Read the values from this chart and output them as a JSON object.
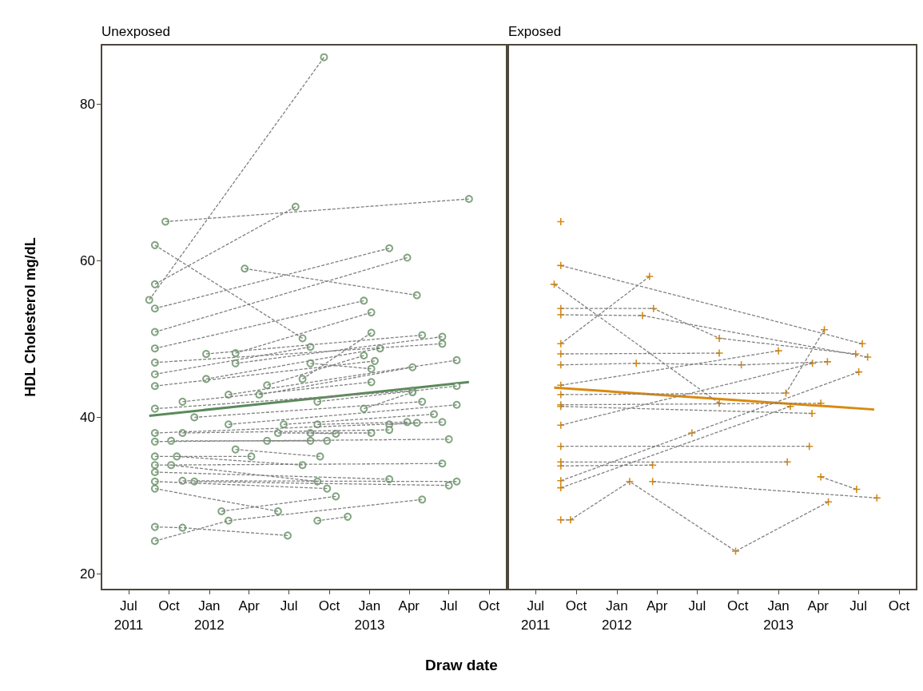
{
  "chart_data": [
    {
      "type": "line",
      "title": "Unexposed",
      "xlabel": "Draw date",
      "ylabel": "HDL Cholesterol mg/dL",
      "line_style": "dashed",
      "marker": "none",
      "xlim": [
        "2011-04-30",
        "2013-11-10"
      ],
      "ylim": [
        18,
        87.6
      ],
      "yticks": [
        20,
        40,
        60,
        80
      ],
      "xticks": [
        {
          "value": "2011-07-01",
          "label": "Jul\n2011"
        },
        {
          "value": "2011-10-01",
          "label": "Oct"
        },
        {
          "value": "2012-01-01",
          "label": "Jan\n2012"
        },
        {
          "value": "2012-04-01",
          "label": "Apr"
        },
        {
          "value": "2012-07-01",
          "label": "Jul"
        },
        {
          "value": "2012-10-01",
          "label": "Oct"
        },
        {
          "value": "2013-01-01",
          "label": "Jan\n2013"
        },
        {
          "value": "2013-04-01",
          "label": "Apr"
        },
        {
          "value": "2013-07-01",
          "label": "Jul"
        },
        {
          "value": "2013-10-01",
          "label": "Oct"
        }
      ],
      "series": [
        {
          "color": "#808080",
          "x": [
            "2011-08-17",
            "2012-09-19"
          ],
          "values": [
            55,
            86
          ]
        },
        {
          "color": "#808080",
          "x": [
            "2011-09-23",
            "2013-08-16"
          ],
          "values": [
            65,
            67.9
          ]
        },
        {
          "color": "#808080",
          "x": [
            "2011-08-30",
            "2012-07-16"
          ],
          "values": [
            57,
            66.9
          ]
        },
        {
          "color": "#808080",
          "x": [
            "2011-08-30",
            "2012-08-01"
          ],
          "values": [
            62,
            50.1
          ]
        },
        {
          "color": "#808080",
          "x": [
            "2011-08-30",
            "2013-02-15"
          ],
          "values": [
            53.9,
            61.6
          ]
        },
        {
          "color": "#808080",
          "x": [
            "2011-08-30",
            "2013-03-28"
          ],
          "values": [
            50.9,
            60.4
          ]
        },
        {
          "color": "#808080",
          "x": [
            "2012-03-22",
            "2013-04-19"
          ],
          "values": [
            59,
            55.6
          ]
        },
        {
          "color": "#808080",
          "x": [
            "2011-08-30",
            "2012-12-19"
          ],
          "values": [
            48.8,
            54.9
          ]
        },
        {
          "color": "#808080",
          "x": [
            "2011-12-25",
            "2013-05-01"
          ],
          "values": [
            48.1,
            50.5
          ]
        },
        {
          "color": "#808080",
          "x": [
            "2012-03-01",
            "2013-01-05"
          ],
          "values": [
            48.2,
            53.4
          ]
        },
        {
          "color": "#808080",
          "x": [
            "2012-03-01",
            "2013-06-16"
          ],
          "values": [
            46.9,
            50.3
          ]
        },
        {
          "color": "#808080",
          "x": [
            "2011-08-30",
            "2013-06-16"
          ],
          "values": [
            47,
            49.4
          ]
        },
        {
          "color": "#808080",
          "x": [
            "2011-08-30",
            "2012-08-19"
          ],
          "values": [
            45.5,
            49
          ]
        },
        {
          "color": "#808080",
          "x": [
            "2011-12-25",
            "2013-01-25"
          ],
          "values": [
            44.9,
            48.8
          ]
        },
        {
          "color": "#808080",
          "x": [
            "2012-08-01",
            "2013-01-05"
          ],
          "values": [
            44.9,
            50.8
          ]
        },
        {
          "color": "#808080",
          "x": [
            "2012-05-12",
            "2012-12-19"
          ],
          "values": [
            44.1,
            47.9
          ]
        },
        {
          "color": "#808080",
          "x": [
            "2011-08-30",
            "2013-01-13"
          ],
          "values": [
            44,
            47.2
          ]
        },
        {
          "color": "#808080",
          "x": [
            "2012-02-14",
            "2013-07-19"
          ],
          "values": [
            42.9,
            47.3
          ]
        },
        {
          "color": "#808080",
          "x": [
            "2012-04-24",
            "2013-04-09"
          ],
          "values": [
            42.9,
            46.4
          ]
        },
        {
          "color": "#808080",
          "x": [
            "2012-08-19",
            "2013-01-05"
          ],
          "values": [
            46.9,
            46.2
          ]
        },
        {
          "color": "#808080",
          "x": [
            "2011-11-01",
            "2013-01-05"
          ],
          "values": [
            42,
            44.5
          ]
        },
        {
          "color": "#808080",
          "x": [
            "2012-09-04",
            "2013-07-19"
          ],
          "values": [
            42,
            44
          ]
        },
        {
          "color": "#808080",
          "x": [
            "2011-08-30",
            "2013-04-09"
          ],
          "values": [
            41.1,
            43.4
          ]
        },
        {
          "color": "#808080",
          "x": [
            "2012-12-19",
            "2013-04-09"
          ],
          "values": [
            41.1,
            43.2
          ]
        },
        {
          "color": "#808080",
          "x": [
            "2011-11-28",
            "2013-05-01"
          ],
          "values": [
            40,
            42
          ]
        },
        {
          "color": "#808080",
          "x": [
            "2012-02-14",
            "2013-07-19"
          ],
          "values": [
            39.1,
            41.6
          ]
        },
        {
          "color": "#808080",
          "x": [
            "2012-06-19",
            "2013-05-28"
          ],
          "values": [
            39.1,
            40.4
          ]
        },
        {
          "color": "#808080",
          "x": [
            "2012-09-04",
            "2013-03-28"
          ],
          "values": [
            39.1,
            39.4
          ]
        },
        {
          "color": "#808080",
          "x": [
            "2013-02-15",
            "2013-04-19"
          ],
          "values": [
            39.1,
            39.3
          ]
        },
        {
          "color": "#808080",
          "x": [
            "2011-08-30",
            "2013-06-16"
          ],
          "values": [
            38,
            39.4
          ]
        },
        {
          "color": "#808080",
          "x": [
            "2011-11-01",
            "2013-02-15"
          ],
          "values": [
            38,
            38.4
          ]
        },
        {
          "color": "#808080",
          "x": [
            "2012-06-06",
            "2013-01-05"
          ],
          "values": [
            38,
            38
          ]
        },
        {
          "color": "#808080",
          "x": [
            "2012-08-19",
            "2012-10-16"
          ],
          "values": [
            38,
            37.9
          ]
        },
        {
          "color": "#808080",
          "x": [
            "2011-08-30",
            "2013-07-01"
          ],
          "values": [
            36.9,
            37.2
          ]
        },
        {
          "color": "#808080",
          "x": [
            "2011-10-06",
            "2012-09-26"
          ],
          "values": [
            37,
            37
          ]
        },
        {
          "color": "#808080",
          "x": [
            "2012-05-12",
            "2012-08-19"
          ],
          "values": [
            37,
            37
          ]
        },
        {
          "color": "#808080",
          "x": [
            "2012-03-01",
            "2012-09-10"
          ],
          "values": [
            35.9,
            35
          ]
        },
        {
          "color": "#808080",
          "x": [
            "2011-08-30",
            "2012-04-06"
          ],
          "values": [
            35,
            35
          ]
        },
        {
          "color": "#808080",
          "x": [
            "2011-10-19",
            "2012-08-01"
          ],
          "values": [
            35,
            33.9
          ]
        },
        {
          "color": "#808080",
          "x": [
            "2011-08-30",
            "2013-06-16"
          ],
          "values": [
            33.9,
            34.1
          ]
        },
        {
          "color": "#808080",
          "x": [
            "2011-10-06",
            "2012-09-04"
          ],
          "values": [
            33.9,
            31.8
          ]
        },
        {
          "color": "#808080",
          "x": [
            "2011-08-30",
            "2013-02-15"
          ],
          "values": [
            33,
            32.1
          ]
        },
        {
          "color": "#808080",
          "x": [
            "2011-11-01",
            "2013-07-19"
          ],
          "values": [
            31.9,
            31.8
          ]
        },
        {
          "color": "#808080",
          "x": [
            "2011-11-28",
            "2013-07-01"
          ],
          "values": [
            31.8,
            31.3
          ]
        },
        {
          "color": "#808080",
          "x": [
            "2011-08-30",
            "2012-09-26"
          ],
          "values": [
            31.8,
            30.9
          ]
        },
        {
          "color": "#808080",
          "x": [
            "2012-01-29",
            "2012-10-16"
          ],
          "values": [
            28,
            29.9
          ]
        },
        {
          "color": "#808080",
          "x": [
            "2011-08-30",
            "2012-06-06"
          ],
          "values": [
            30.9,
            28
          ]
        },
        {
          "color": "#808080",
          "x": [
            "2011-08-30",
            "2012-02-14",
            "2013-05-01"
          ],
          "values": [
            24.2,
            26.8,
            29.5
          ]
        },
        {
          "color": "#808080",
          "x": [
            "2012-09-04",
            "2012-11-12"
          ],
          "values": [
            26.8,
            27.3
          ]
        },
        {
          "color": "#808080",
          "x": [
            "2011-08-30",
            "2011-11-01",
            "2012-06-28"
          ],
          "values": [
            26,
            25.9,
            24.9
          ]
        },
        {
          "type": "scatter",
          "color": "#5f8f5f",
          "marker": "circle",
          "x": [
            "2011-08-17",
            "2012-09-19",
            "2011-09-23",
            "2013-08-16",
            "2011-08-30",
            "2012-07-16",
            "2011-08-30",
            "2012-08-01",
            "2011-08-30",
            "2013-02-15",
            "2011-08-30",
            "2013-03-28",
            "2012-03-22",
            "2013-04-19",
            "2011-08-30",
            "2012-12-19",
            "2011-12-25",
            "2013-05-01",
            "2012-03-01",
            "2013-01-05",
            "2012-03-01",
            "2013-06-16",
            "2011-08-30",
            "2013-06-16",
            "2011-08-30",
            "2012-08-19",
            "2011-12-25",
            "2013-01-25",
            "2012-08-01",
            "2013-01-05",
            "2012-05-12",
            "2012-12-19",
            "2011-08-30",
            "2013-01-13",
            "2012-02-14",
            "2013-07-19",
            "2012-04-24",
            "2013-04-09",
            "2012-08-19",
            "2013-01-05",
            "2011-11-01",
            "2013-01-05",
            "2012-09-04",
            "2013-07-19",
            "2011-08-30",
            "2013-04-09",
            "2012-12-19",
            "2013-04-09",
            "2011-11-28",
            "2013-05-01",
            "2012-02-14",
            "2013-07-19",
            "2012-06-19",
            "2013-05-28",
            "2012-09-04",
            "2013-03-28",
            "2013-02-15",
            "2013-04-19",
            "2011-08-30",
            "2013-06-16",
            "2011-11-01",
            "2013-02-15",
            "2012-06-06",
            "2013-01-05",
            "2012-08-19",
            "2012-10-16",
            "2011-08-30",
            "2013-07-01",
            "2011-10-06",
            "2012-09-26",
            "2012-05-12",
            "2012-08-19",
            "2012-03-01",
            "2012-09-10",
            "2011-08-30",
            "2012-04-06",
            "2011-10-19",
            "2012-08-01",
            "2011-08-30",
            "2013-06-16",
            "2011-10-06",
            "2012-09-04",
            "2011-08-30",
            "2013-02-15",
            "2011-11-01",
            "2013-07-19",
            "2011-11-28",
            "2013-07-01",
            "2011-08-30",
            "2012-09-26",
            "2012-01-29",
            "2012-10-16",
            "2011-08-30",
            "2012-06-06",
            "2011-08-30",
            "2012-02-14",
            "2013-05-01",
            "2012-09-04",
            "2012-11-12",
            "2011-08-30",
            "2011-11-01",
            "2012-06-28"
          ],
          "values": [
            55,
            86,
            65,
            67.9,
            57,
            66.9,
            62,
            50.1,
            53.9,
            61.6,
            50.9,
            60.4,
            59,
            55.6,
            48.8,
            54.9,
            48.1,
            50.5,
            48.2,
            53.4,
            46.9,
            50.3,
            47,
            49.4,
            45.5,
            49,
            44.9,
            48.8,
            44.9,
            50.8,
            44.1,
            47.9,
            44,
            47.2,
            42.9,
            47.3,
            42.9,
            46.4,
            46.9,
            46.2,
            42,
            44.5,
            42,
            44,
            41.1,
            43.4,
            41.1,
            43.2,
            40,
            42,
            39.1,
            41.6,
            39.1,
            40.4,
            39.1,
            39.4,
            39.1,
            39.3,
            38,
            39.4,
            38,
            38.4,
            38,
            38,
            38,
            37.9,
            36.9,
            37.2,
            37,
            37,
            37,
            37,
            35.9,
            35,
            35,
            35,
            35,
            33.9,
            33.9,
            34.1,
            33.9,
            31.8,
            33,
            32.1,
            31.9,
            31.8,
            31.8,
            31.3,
            31.8,
            30.9,
            28,
            29.9,
            30.9,
            28,
            24.2,
            26.8,
            29.5,
            26.8,
            27.3,
            26,
            25.9,
            24.9
          ]
        },
        {
          "color": "#5b8a5b",
          "line_style": "solid",
          "x": [
            "2011-08-17",
            "2013-08-16"
          ],
          "values": [
            40.2,
            44.5
          ]
        }
      ]
    },
    {
      "type": "line",
      "title": "Exposed",
      "tick_labels": "x",
      "line_style": "dashed",
      "marker": "none",
      "xlim": [
        "2011-04-30",
        "2013-11-10"
      ],
      "ylim": [
        18,
        87.6
      ],
      "yticks": [
        20,
        40,
        60,
        80
      ],
      "xticks": [
        {
          "value": "2011-07-01",
          "label": "Jul\n2011"
        },
        {
          "value": "2011-10-01",
          "label": "Oct"
        },
        {
          "value": "2012-01-01",
          "label": "Jan\n2012"
        },
        {
          "value": "2012-04-01",
          "label": "Apr"
        },
        {
          "value": "2012-07-01",
          "label": "Jul"
        },
        {
          "value": "2012-10-01",
          "label": "Oct"
        },
        {
          "value": "2013-01-01",
          "label": "Jan\n2013"
        },
        {
          "value": "2013-04-01",
          "label": "Apr"
        },
        {
          "value": "2013-07-01",
          "label": "Jul"
        },
        {
          "value": "2013-10-01",
          "label": "Oct"
        }
      ],
      "series": [
        {
          "color": "#808080",
          "x": [
            "2011-08-27",
            "2013-07-10"
          ],
          "values": [
            59.4,
            49.4
          ]
        },
        {
          "color": "#808080",
          "x": [
            "2011-08-12",
            "2012-08-20"
          ],
          "values": [
            57,
            41.8
          ]
        },
        {
          "color": "#808080",
          "x": [
            "2011-08-27",
            "2012-03-24",
            "2012-08-20",
            "2013-06-25"
          ],
          "values": [
            53.9,
            53.9,
            50.1,
            48.1
          ]
        },
        {
          "color": "#808080",
          "x": [
            "2011-08-27",
            "2012-02-28",
            "2013-07-22"
          ],
          "values": [
            53.1,
            53,
            47.7
          ]
        },
        {
          "color": "#808080",
          "x": [
            "2011-08-27",
            "2012-03-15"
          ],
          "values": [
            49.4,
            58
          ]
        },
        {
          "color": "#808080",
          "x": [
            "2011-08-27",
            "2012-08-20"
          ],
          "values": [
            48.1,
            48.2
          ]
        },
        {
          "color": "#808080",
          "x": [
            "2011-08-27",
            "2012-02-14",
            "2012-10-09",
            "2013-04-22"
          ],
          "values": [
            46.7,
            46.9,
            46.7,
            47.1
          ]
        },
        {
          "color": "#808080",
          "x": [
            "2011-08-27",
            "2013-01-01"
          ],
          "values": [
            44.1,
            48.5
          ]
        },
        {
          "color": "#808080",
          "x": [
            "2011-08-27",
            "2013-01-18",
            "2013-04-15"
          ],
          "values": [
            42.9,
            43.1,
            51.2
          ]
        },
        {
          "color": "#808080",
          "x": [
            "2011-08-27",
            "2013-04-07"
          ],
          "values": [
            41.6,
            41.8
          ]
        },
        {
          "color": "#808080",
          "x": [
            "2011-08-27",
            "2013-03-18"
          ],
          "values": [
            41.4,
            40.5
          ]
        },
        {
          "color": "#808080",
          "x": [
            "2011-08-27",
            "2013-03-19"
          ],
          "values": [
            39,
            46.9
          ]
        },
        {
          "color": "#808080",
          "x": [
            "2011-08-27",
            "2012-06-19",
            "2013-07-02"
          ],
          "values": [
            31.9,
            38,
            45.8
          ]
        },
        {
          "color": "#808080",
          "x": [
            "2011-08-27",
            "2013-03-12"
          ],
          "values": [
            36.3,
            36.3
          ]
        },
        {
          "color": "#808080",
          "x": [
            "2011-08-27",
            "2013-01-21"
          ],
          "values": [
            34.3,
            34.3
          ]
        },
        {
          "color": "#808080",
          "x": [
            "2011-08-27",
            "2012-03-22"
          ],
          "values": [
            33.8,
            33.9
          ]
        },
        {
          "color": "#808080",
          "x": [
            "2011-08-27",
            "2013-01-28"
          ],
          "values": [
            31,
            41.4
          ]
        },
        {
          "color": "#808080",
          "x": [
            "2011-08-27",
            "2011-09-18",
            "2012-01-30",
            "2012-09-26",
            "2013-04-24"
          ],
          "values": [
            26.9,
            26.9,
            31.8,
            22.9,
            29.2
          ]
        },
        {
          "color": "#808080",
          "x": [
            "2012-03-22",
            "2013-08-12"
          ],
          "values": [
            31.8,
            29.7
          ]
        },
        {
          "color": "#808080",
          "x": [
            "2013-04-07",
            "2013-06-27"
          ],
          "values": [
            32.4,
            30.8
          ]
        },
        {
          "type": "scatter",
          "color": "#d98a10",
          "marker": "cross",
          "x": [
            "2011-08-27",
            "2011-08-27",
            "2013-07-10",
            "2011-08-12",
            "2012-08-20",
            "2011-08-27",
            "2012-03-24",
            "2012-08-20",
            "2013-06-25",
            "2011-08-27",
            "2012-02-28",
            "2013-07-22",
            "2011-08-27",
            "2012-03-15",
            "2011-08-27",
            "2012-08-20",
            "2011-08-27",
            "2012-02-14",
            "2012-10-09",
            "2013-04-22",
            "2011-08-27",
            "2013-01-01",
            "2011-08-27",
            "2013-01-18",
            "2013-04-15",
            "2011-08-27",
            "2013-04-07",
            "2011-08-27",
            "2013-03-18",
            "2011-08-27",
            "2013-03-19",
            "2011-08-27",
            "2012-06-19",
            "2013-07-02",
            "2011-08-27",
            "2013-03-12",
            "2011-08-27",
            "2013-01-21",
            "2011-08-27",
            "2012-03-22",
            "2011-08-27",
            "2013-01-28",
            "2011-08-27",
            "2011-09-18",
            "2012-01-30",
            "2012-09-26",
            "2013-04-24",
            "2012-03-22",
            "2013-08-12",
            "2013-04-07",
            "2013-06-27"
          ],
          "values": [
            65,
            59.4,
            49.4,
            57,
            41.8,
            53.9,
            53.9,
            50.1,
            48.1,
            53.1,
            53,
            47.7,
            49.4,
            58,
            48.1,
            48.2,
            46.7,
            46.9,
            46.7,
            47.1,
            44.1,
            48.5,
            42.9,
            43.1,
            51.2,
            41.6,
            41.8,
            41.4,
            40.5,
            39,
            46.9,
            31.9,
            38,
            45.8,
            36.3,
            36.3,
            34.3,
            34.3,
            33.8,
            33.9,
            31,
            41.4,
            26.9,
            26.9,
            31.8,
            22.9,
            29.2,
            31.8,
            29.7,
            32.4,
            30.8
          ]
        },
        {
          "color": "#d98a10",
          "line_style": "solid",
          "x": [
            "2011-08-12",
            "2013-08-06"
          ],
          "values": [
            43.8,
            41.0
          ]
        }
      ]
    }
  ]
}
